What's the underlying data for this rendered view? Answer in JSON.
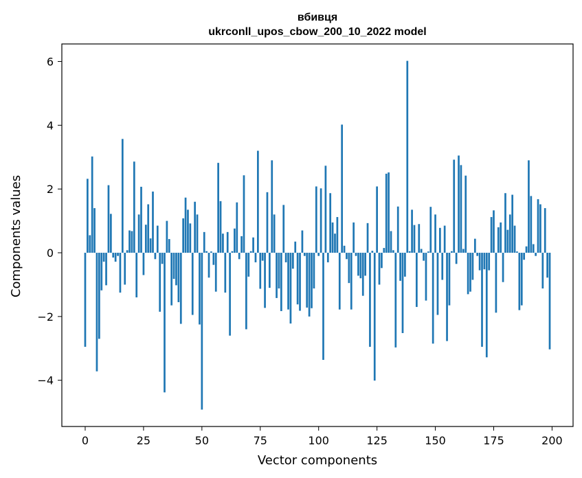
{
  "chart_data": {
    "type": "bar",
    "title": "вбивця",
    "subtitle": "ukrconll_upos_cbow_200_10_2022 model",
    "xlabel": "Vector components",
    "ylabel": "Components values",
    "xlim": [
      -10,
      209
    ],
    "ylim": [
      -5.45,
      6.55
    ],
    "xticks": [
      0,
      25,
      50,
      75,
      100,
      125,
      150,
      175,
      200
    ],
    "yticks": [
      -4,
      -2,
      0,
      2,
      4,
      6
    ],
    "ytick_labels": [
      "−4",
      "−2",
      "0",
      "2",
      "4",
      "6"
    ],
    "color": "#1f77b4",
    "grid": false,
    "x": [
      0,
      1,
      2,
      3,
      4,
      5,
      6,
      7,
      8,
      9,
      10,
      11,
      12,
      13,
      14,
      15,
      16,
      17,
      18,
      19,
      20,
      21,
      22,
      23,
      24,
      25,
      26,
      27,
      28,
      29,
      30,
      31,
      32,
      33,
      34,
      35,
      36,
      37,
      38,
      39,
      40,
      41,
      42,
      43,
      44,
      45,
      46,
      47,
      48,
      49,
      50,
      51,
      52,
      53,
      54,
      55,
      56,
      57,
      58,
      59,
      60,
      61,
      62,
      63,
      64,
      65,
      66,
      67,
      68,
      69,
      70,
      71,
      72,
      73,
      74,
      75,
      76,
      77,
      78,
      79,
      80,
      81,
      82,
      83,
      84,
      85,
      86,
      87,
      88,
      89,
      90,
      91,
      92,
      93,
      94,
      95,
      96,
      97,
      98,
      99,
      100,
      101,
      102,
      103,
      104,
      105,
      106,
      107,
      108,
      109,
      110,
      111,
      112,
      113,
      114,
      115,
      116,
      117,
      118,
      119,
      120,
      121,
      122,
      123,
      124,
      125,
      126,
      127,
      128,
      129,
      130,
      131,
      132,
      133,
      134,
      135,
      136,
      137,
      138,
      139,
      140,
      141,
      142,
      143,
      144,
      145,
      146,
      147,
      148,
      149,
      150,
      151,
      152,
      153,
      154,
      155,
      156,
      157,
      158,
      159,
      160,
      161,
      162,
      163,
      164,
      165,
      166,
      167,
      168,
      169,
      170,
      171,
      172,
      173,
      174,
      175,
      176,
      177,
      178,
      179,
      180,
      181,
      182,
      183,
      184,
      185,
      186,
      187,
      188,
      189,
      190,
      191,
      192,
      193,
      194,
      195,
      196,
      197,
      198,
      199
    ],
    "values": [
      -2.95,
      2.32,
      0.55,
      3.02,
      1.4,
      -3.72,
      -2.7,
      -1.18,
      -0.28,
      -1.02,
      2.12,
      1.22,
      -0.15,
      -0.28,
      -0.1,
      -1.25,
      3.57,
      -1.0,
      0.08,
      0.7,
      0.68,
      2.86,
      -1.4,
      1.2,
      2.07,
      -0.7,
      0.88,
      1.52,
      0.45,
      1.92,
      -0.2,
      0.85,
      -1.85,
      -0.35,
      -4.38,
      1.0,
      0.43,
      -1.65,
      -0.82,
      -1.02,
      -1.55,
      -2.23,
      1.08,
      1.73,
      1.35,
      0.92,
      -1.95,
      1.6,
      1.2,
      -2.25,
      -4.92,
      0.65,
      0.05,
      -0.78,
      0.04,
      -0.38,
      -1.22,
      2.82,
      1.62,
      0.6,
      -1.25,
      0.65,
      -2.6,
      0.05,
      0.76,
      1.58,
      -0.2,
      0.52,
      2.43,
      -2.4,
      -0.75,
      0.05,
      0.48,
      -0.3,
      3.2,
      -1.13,
      -0.25,
      -1.73,
      1.9,
      -1.1,
      2.9,
      1.2,
      -1.42,
      -1.12,
      -1.83,
      1.5,
      -0.3,
      -1.78,
      -2.22,
      -0.5,
      0.35,
      -1.62,
      -1.82,
      0.7,
      -0.1,
      -1.72,
      -2.0,
      -1.74,
      -1.12,
      2.08,
      -0.1,
      2.02,
      -3.36,
      2.73,
      -0.3,
      1.87,
      0.95,
      0.6,
      1.12,
      -1.78,
      4.02,
      0.22,
      -0.2,
      -0.95,
      -1.78,
      0.95,
      -0.1,
      -0.72,
      -0.8,
      -1.35,
      -0.72,
      0.93,
      -2.95,
      0.06,
      -4.01,
      2.08,
      -1.0,
      -0.48,
      0.15,
      2.48,
      2.52,
      0.68,
      0.08,
      -2.97,
      1.45,
      -0.88,
      -2.52,
      -0.75,
      6.02,
      0.05,
      1.35,
      0.87,
      -1.7,
      0.9,
      0.12,
      -0.25,
      -1.5,
      0.04,
      1.44,
      -2.85,
      1.2,
      -1.95,
      0.78,
      -0.85,
      0.85,
      -2.77,
      -1.65,
      0.05,
      2.92,
      -0.35,
      3.05,
      2.75,
      0.12,
      2.42,
      -1.3,
      -1.22,
      -0.85,
      0.44,
      -0.1,
      -0.55,
      -2.95,
      -0.52,
      -3.28,
      -0.55,
      1.12,
      1.33,
      -1.88,
      0.8,
      0.95,
      -0.92,
      1.87,
      0.72,
      1.2,
      1.82,
      0.85,
      0.04,
      -1.8,
      -1.65,
      -0.22,
      0.2,
      2.9,
      1.78,
      0.27,
      -0.1,
      1.68,
      1.52,
      -1.12,
      1.4,
      -0.78,
      -3.03
    ]
  }
}
